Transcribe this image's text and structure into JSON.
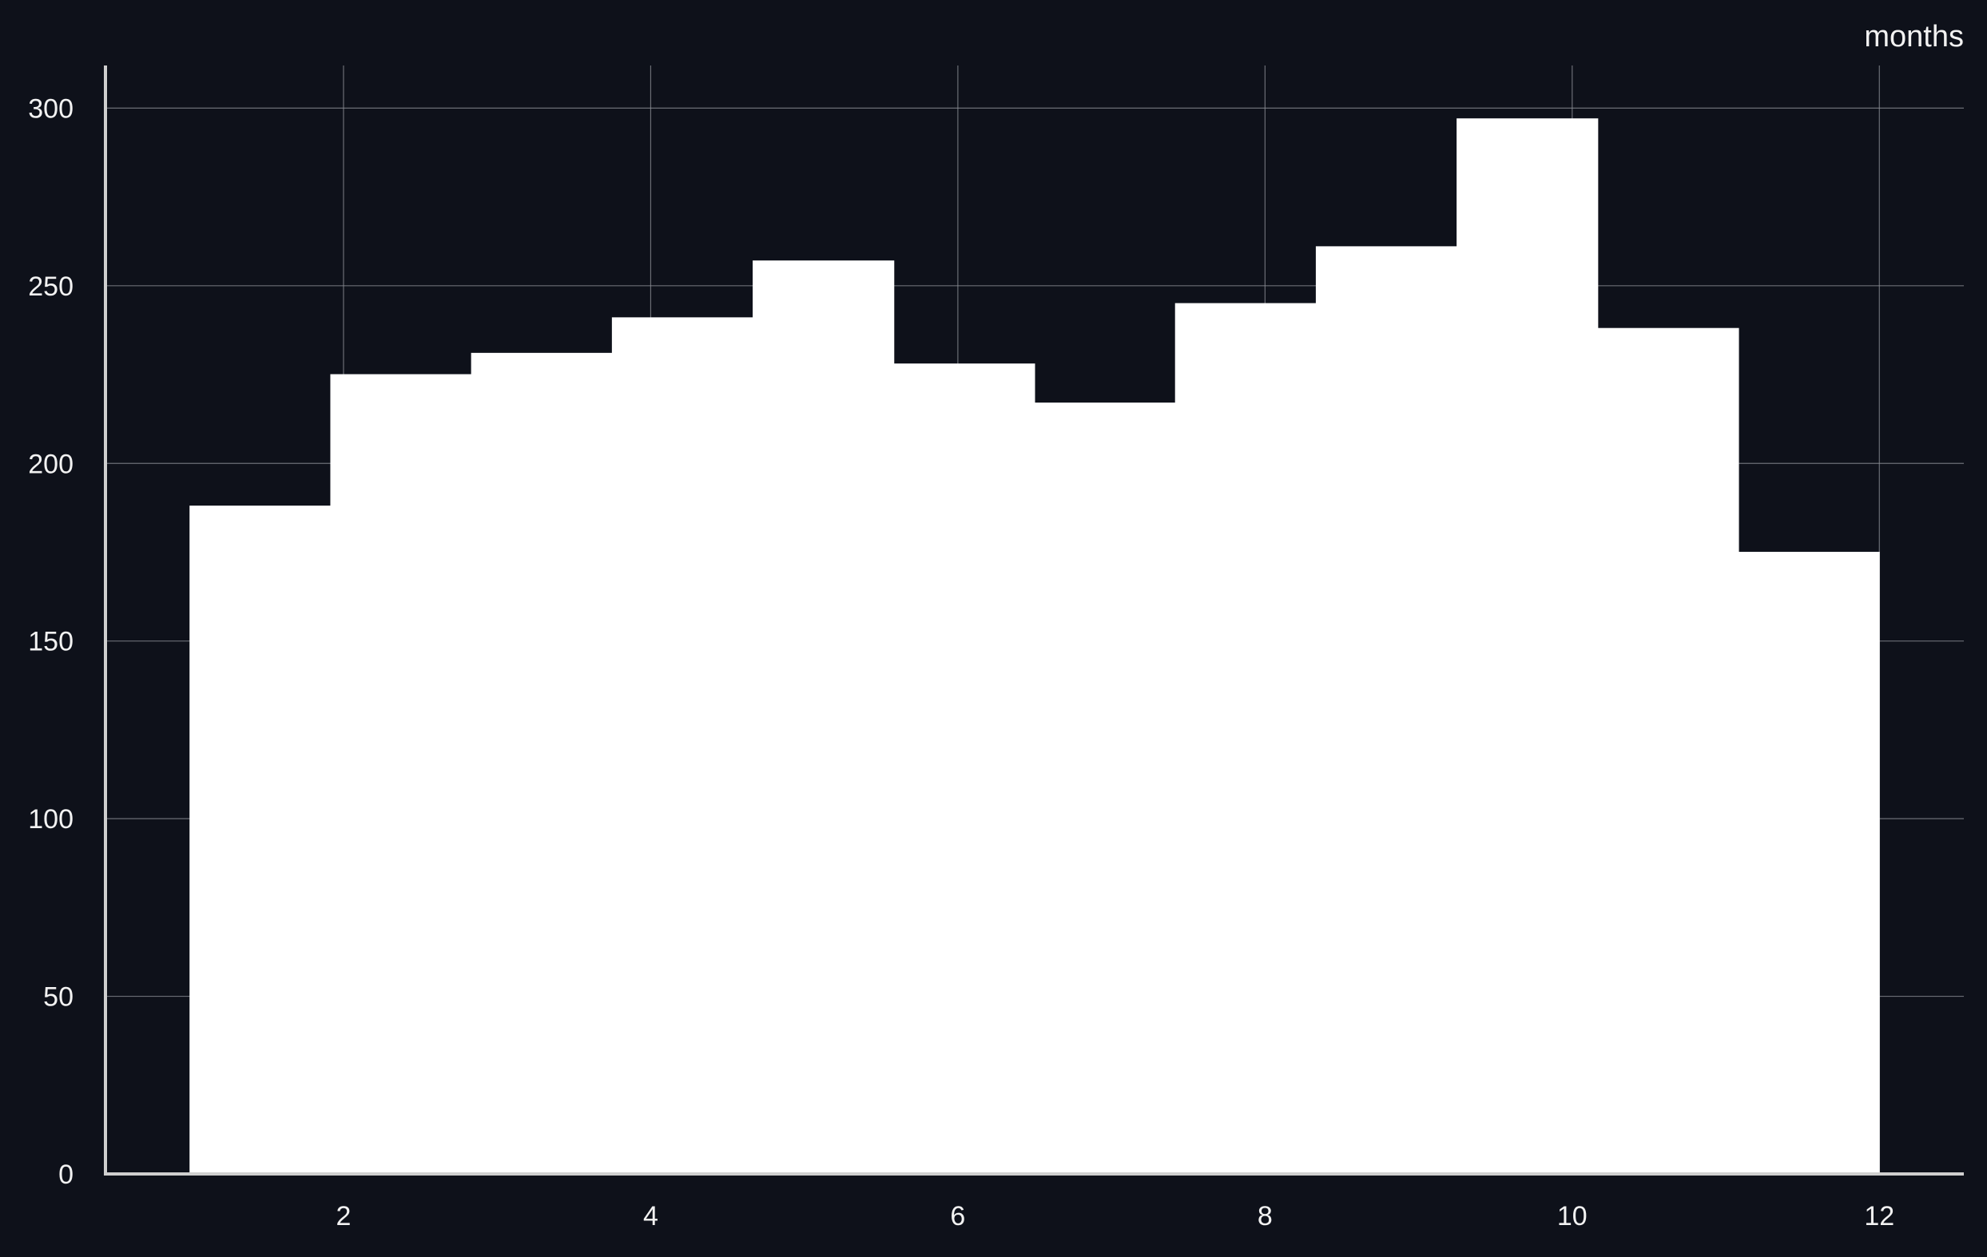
{
  "chart_data": {
    "type": "bar",
    "title": "",
    "xlabel": "months",
    "ylabel": "",
    "x": [
      1,
      2,
      3,
      4,
      5,
      6,
      7,
      8,
      9,
      10,
      11,
      12
    ],
    "values": [
      188,
      225,
      231,
      241,
      257,
      228,
      217,
      245,
      261,
      297,
      238,
      175
    ],
    "bins": [
      [
        1.0,
        1.9167
      ],
      [
        1.9167,
        2.8333
      ],
      [
        2.8333,
        3.75
      ],
      [
        3.75,
        4.6667
      ],
      [
        4.6667,
        5.5833
      ],
      [
        5.5833,
        6.5
      ],
      [
        6.5,
        7.4167
      ],
      [
        7.4167,
        8.3333
      ],
      [
        8.3333,
        9.25
      ],
      [
        9.25,
        10.1667
      ],
      [
        10.1667,
        11.0833
      ],
      [
        11.0833,
        12.0
      ]
    ],
    "xlim": [
      0.45,
      12.55
    ],
    "ylim": [
      0,
      312
    ],
    "xticks": [
      2,
      4,
      6,
      8,
      10,
      12
    ],
    "xtick_labels": [
      "2",
      "4",
      "6",
      "8",
      "10",
      "12"
    ],
    "yticks": [
      0,
      50,
      100,
      150,
      200,
      250,
      300
    ],
    "ytick_labels": [
      "0",
      "50",
      "100",
      "150",
      "200",
      "250",
      "300"
    ],
    "grid": true,
    "legend": "none",
    "colors": {
      "background": "#0e111a",
      "bar": "#ffffff",
      "grid": "#8a8d94",
      "axis": "#cfcfcf",
      "text": "#f2f2f2"
    }
  }
}
